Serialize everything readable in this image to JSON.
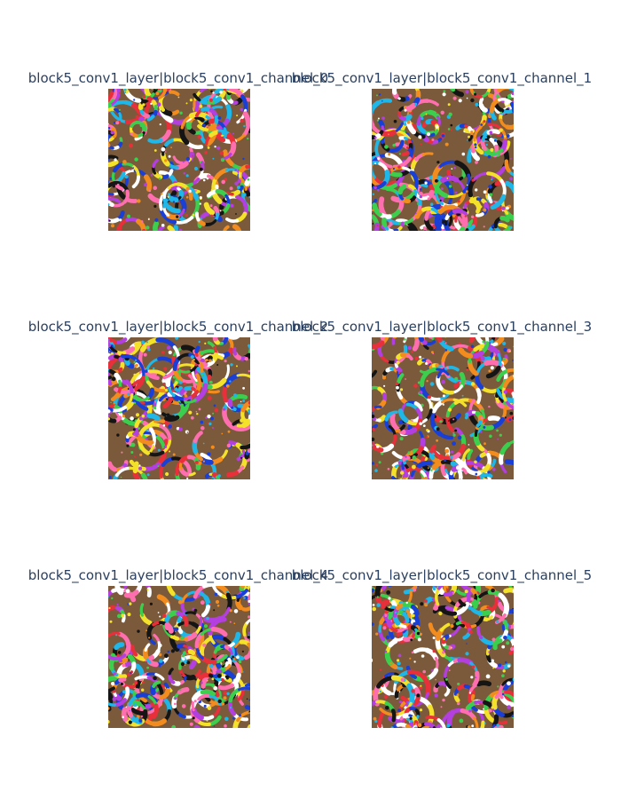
{
  "figure": {
    "panels": [
      {
        "title": "block5_conv1_layer|block5_conv1_channel_0",
        "hue": 0
      },
      {
        "title": "block5_conv1_layer|block5_conv1_channel_1",
        "hue": 35
      },
      {
        "title": "block5_conv1_layer|block5_conv1_channel_2",
        "hue": 70
      },
      {
        "title": "block5_conv1_layer|block5_conv1_channel_3",
        "hue": 110
      },
      {
        "title": "block5_conv1_layer|block5_conv1_channel_4",
        "hue": 160
      },
      {
        "title": "block5_conv1_layer|block5_conv1_channel_5",
        "hue": 210
      }
    ]
  }
}
